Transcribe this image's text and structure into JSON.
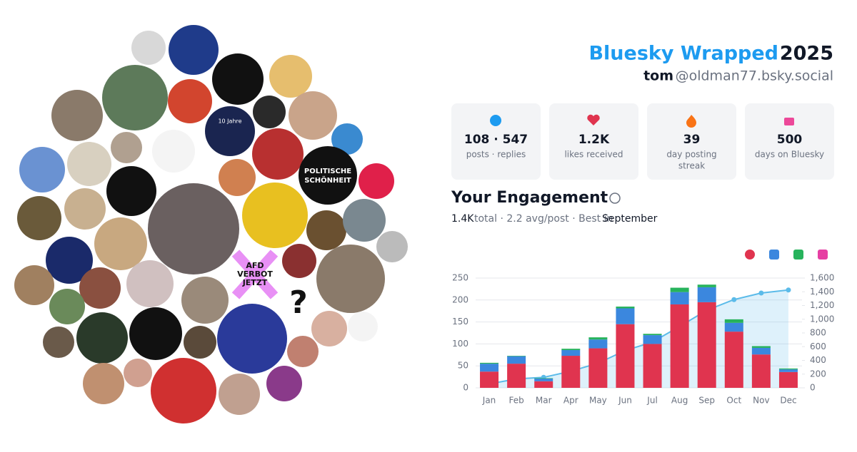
{
  "header": {
    "title_brand": "Bluesky Wrapped",
    "title_year": "2025",
    "name": "tom",
    "handle": "@oldman77.bsky.social"
  },
  "stats": [
    {
      "value": "108 · 547",
      "label": [
        "posts · replies"
      ]
    },
    {
      "value": "1.2K",
      "label": [
        "likes received"
      ]
    },
    {
      "value": "39",
      "label": [
        "day posting",
        "streak"
      ]
    },
    {
      "value": "500",
      "label": [
        "days on Bluesky"
      ]
    }
  ],
  "engagement": {
    "title": "Your Engagement",
    "total": "1.4K",
    "summary": "total · 2.2 avg/post · Best in",
    "best_month": "September"
  },
  "avatar_texts": {
    "anniversary": "10 Jahre",
    "politische": [
      "POLITISCHE",
      "SCHÖNHEIT"
    ],
    "afd": [
      "AFD",
      "VERBOT",
      "JETZT"
    ],
    "question": "?"
  },
  "chart_data": {
    "type": "bar",
    "stacked": true,
    "grid": true,
    "categories": [
      "Jan",
      "Feb",
      "Mar",
      "Apr",
      "May",
      "Jun",
      "Jul",
      "Aug",
      "Sep",
      "Oct",
      "Nov",
      "Dec"
    ],
    "series": [
      {
        "color": "#e0344f",
        "values": [
          37,
          55,
          15,
          73,
          90,
          145,
          100,
          190,
          195,
          128,
          76,
          36
        ]
      },
      {
        "color": "#3b87de",
        "values": [
          18,
          17,
          6,
          13,
          20,
          36,
          20,
          28,
          34,
          20,
          15,
          6
        ]
      },
      {
        "color": "#27b35c",
        "values": [
          2,
          1,
          1,
          3,
          5,
          4,
          3,
          10,
          6,
          8,
          4,
          2
        ]
      },
      {
        "color": "#e63fa3",
        "values": [
          0,
          0,
          0,
          0,
          0,
          0,
          0,
          0,
          0,
          0,
          0,
          0
        ]
      },
      {
        "color": "#5bbbe9",
        "axis": "y2",
        "values": [
          57,
          130,
          153,
          242,
          359,
          544,
          667,
          895,
          1131,
          1286,
          1382,
          1426
        ]
      }
    ],
    "ylim": [
      0,
      250
    ],
    "yticks": [
      0,
      50,
      100,
      150,
      200,
      250
    ],
    "y2lim": [
      0,
      1600
    ],
    "y2ticks": [
      0,
      200,
      400,
      600,
      800,
      {
        "value": 1000,
        "label": "1,000"
      },
      {
        "value": 1200,
        "label": "1,200"
      },
      {
        "value": 1400,
        "label": "1,400"
      },
      {
        "value": 1600,
        "label": "1,600"
      }
    ]
  }
}
